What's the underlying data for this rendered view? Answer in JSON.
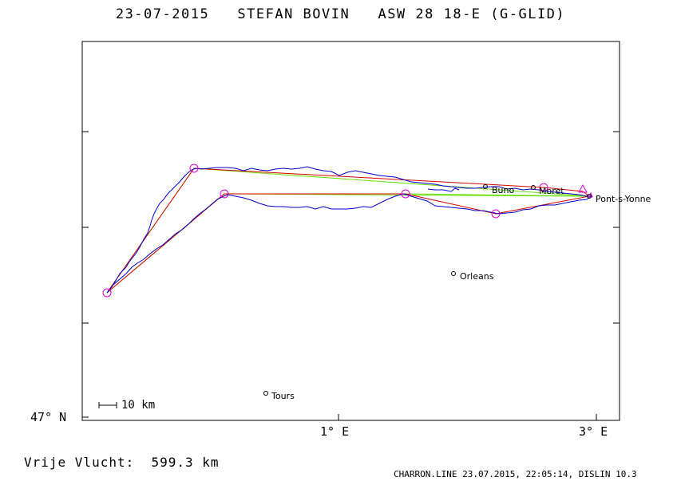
{
  "header": {
    "date": "23-07-2015",
    "pilot": "STEFAN BOVIN",
    "glider": "ASW 28 18-E (G-GLID)"
  },
  "axes": {
    "lat_label": "47° N",
    "lon_labels": [
      "1° E",
      "3° E"
    ]
  },
  "scale_bar_label": "10 km",
  "towns": [
    "Tours",
    "Orleans",
    "Buno",
    "Moret",
    "Pont-s-Yonne"
  ],
  "result": {
    "label": "Vrije Vlucht:",
    "distance": "599.3 km"
  },
  "footer": "CHARRON.LINE 23.07.2015, 22:05:14, DISLIN 10.3",
  "colors": {
    "track": "#0000cc",
    "task_leg": "#dd0000",
    "optimized_leg": "#66dd00",
    "turnpoint": "#dd00dd",
    "frame": "#000000"
  }
}
